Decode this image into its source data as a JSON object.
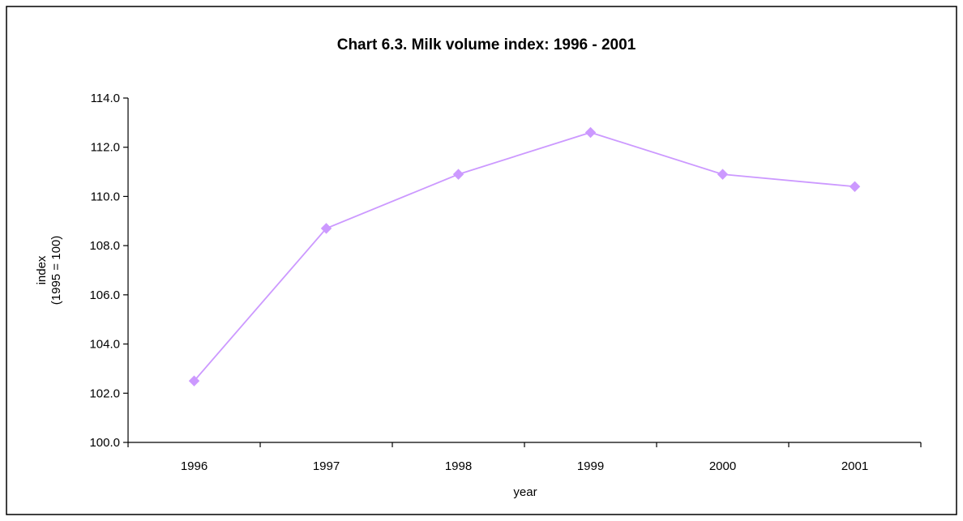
{
  "chart_data": {
    "type": "line",
    "title": "Chart 6.3.  Milk volume index:  1996 - 2001",
    "xlabel": "year",
    "ylabel_lines": [
      "index",
      "(1995 = 100)"
    ],
    "categories": [
      "1996",
      "1997",
      "1998",
      "1999",
      "2000",
      "2001"
    ],
    "series": [
      {
        "values": [
          102.5,
          108.7,
          110.9,
          112.6,
          110.9,
          110.4
        ],
        "color": "#cc99ff",
        "marker": "diamond"
      }
    ],
    "ylim": [
      100.0,
      114.0
    ],
    "yticks": [
      100.0,
      102.0,
      104.0,
      106.0,
      108.0,
      110.0,
      112.0,
      114.0
    ],
    "ytick_labels": [
      "100.0",
      "102.0",
      "104.0",
      "106.0",
      "108.0",
      "110.0",
      "112.0",
      "114.0"
    ],
    "grid": false,
    "legend": "none"
  }
}
